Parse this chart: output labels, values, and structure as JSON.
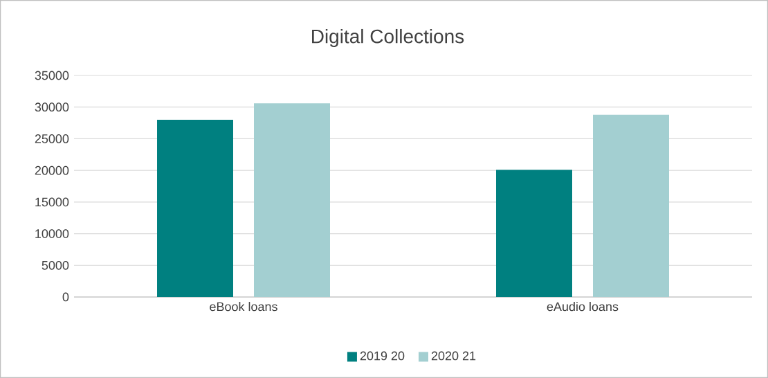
{
  "chart_data": {
    "type": "bar",
    "title": "Digital Collections",
    "categories": [
      "eBook loans",
      "eAudio loans"
    ],
    "series": [
      {
        "name": "2019 20",
        "color": "#008080",
        "values": [
          28000,
          20100
        ]
      },
      {
        "name": "2020 21",
        "color": "#a3cfd1",
        "values": [
          30600,
          28800
        ]
      }
    ],
    "ylim": [
      0,
      35000
    ],
    "yticks": [
      0,
      5000,
      10000,
      15000,
      20000,
      25000,
      30000,
      35000
    ],
    "grid": "y",
    "legend": "bottom"
  }
}
